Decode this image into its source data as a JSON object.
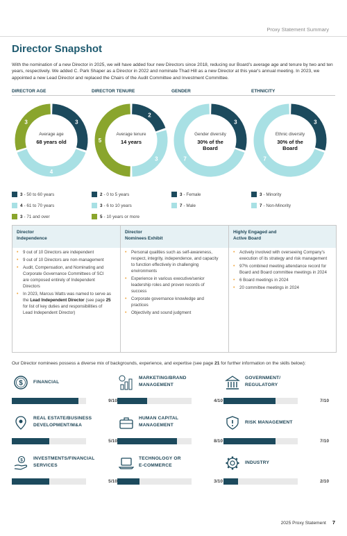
{
  "header": {
    "running_title": "Proxy Statement Summary"
  },
  "title": "Director Snapshot",
  "intro": "With the nomination of a new Director in 2025, we will have added four new Directors since 2018, reducing our Board's average age and tenure by two and ten years, respectively. We added C. Park Shaper as a Director in 2022 and nominate Thad Hill as a new Director at this year's annual meeting. In 2023, we appointed a new Lead Director and replaced the Chairs of the Audit Committee and Investment Committee.",
  "charts": [
    {
      "heading": "DIRECTOR AGE",
      "center_label": "Average age",
      "center_value": "68 years old",
      "segments": [
        {
          "value": 3,
          "color": "#1c4a5d"
        },
        {
          "value": 4,
          "color": "#a8e0e4"
        },
        {
          "value": 3,
          "color": "#8aa52d"
        }
      ],
      "legend": [
        {
          "num": "3",
          "text": "- 50 to 60 years",
          "color": "#1c4a5d"
        },
        {
          "num": "4",
          "text": "- 61 to 70 years",
          "color": "#a8e0e4"
        },
        {
          "num": "3",
          "text": "- 71 and over",
          "color": "#8aa52d"
        }
      ]
    },
    {
      "heading": "DIRECTOR TENURE",
      "center_label": "Average tenure",
      "center_value": "14 years",
      "segments": [
        {
          "value": 2,
          "color": "#1c4a5d"
        },
        {
          "value": 3,
          "color": "#a8e0e4"
        },
        {
          "value": 5,
          "color": "#8aa52d"
        }
      ],
      "legend": [
        {
          "num": "2",
          "text": "- 0 to 5 years",
          "color": "#1c4a5d"
        },
        {
          "num": "3",
          "text": "- 6 to 10 years",
          "color": "#a8e0e4"
        },
        {
          "num": "5",
          "text": "- 10 years or more",
          "color": "#8aa52d"
        }
      ]
    },
    {
      "heading": "GENDER",
      "center_label": "Gender diversity",
      "center_value": "30% of the Board",
      "segments": [
        {
          "value": 3,
          "color": "#1c4a5d"
        },
        {
          "value": 7,
          "color": "#a8e0e4"
        }
      ],
      "legend": [
        {
          "num": "3",
          "text": "- Female",
          "color": "#1c4a5d"
        },
        {
          "num": "7",
          "text": "- Male",
          "color": "#a8e0e4"
        }
      ]
    },
    {
      "heading": "ETHNICITY",
      "center_label": "Ethnic diversity",
      "center_value": "30% of the Board",
      "segments": [
        {
          "value": 3,
          "color": "#1c4a5d"
        },
        {
          "value": 7,
          "color": "#a8e0e4"
        }
      ],
      "legend": [
        {
          "num": "3",
          "text": "- Minority",
          "color": "#1c4a5d"
        },
        {
          "num": "7",
          "text": "- Non-Minority",
          "color": "#a8e0e4"
        }
      ]
    }
  ],
  "columns": [
    {
      "heading": "Director\nIndependence",
      "items": [
        {
          "text": "9 out of 10 Directors are independent"
        },
        {
          "text": "9 out of 10 Directors are non-management"
        },
        {
          "text": "Audit, Compensation, and Nominating and Corporate Governance Committees of SCI are composed entirely of Independent Directors"
        },
        {
          "pre": "In 2023, Marcus Watts was named to serve as the ",
          "bold": "Lead Independent Director",
          "mid": " (see page ",
          "bold2": "25",
          "post": " for list of key duties and responsibilities of Lead Independent Director)"
        }
      ]
    },
    {
      "heading": "Director\nNominees Exhibit",
      "items": [
        {
          "text": "Personal qualities such as self-awareness, respect, integrity, independence, and capacity to function effectively in challenging environments"
        },
        {
          "text": "Experience in various executive/senior leadership roles and proven records of success"
        },
        {
          "text": "Corporate governance knowledge and practices"
        },
        {
          "text": "Objectivity and sound judgment"
        }
      ]
    },
    {
      "heading": "Highly Engaged and\nActive Board",
      "items": [
        {
          "text": "Actively involved with overseeing Company's execution of its strategy and risk management"
        },
        {
          "text": "97% combined meeting attendance record for Board and Board committee meetings in 2024"
        },
        {
          "text": "6 Board meetings in 2024"
        },
        {
          "text": "20 committee meetings in 2024"
        }
      ]
    }
  ],
  "skills_intro": {
    "pre": "Our Director nominees possess a diverse mix of backgrounds, experience, and expertise (see page ",
    "page": "21",
    "post": " for further information on the skills below):"
  },
  "skills": [
    {
      "label": "FINANCIAL",
      "icon": "dollar-coin-icon",
      "score": 9,
      "score_text": "9/10"
    },
    {
      "label": "MARKETING/BRAND\nMANAGEMENT",
      "icon": "bar-chart-icon",
      "score": 4,
      "score_text": "4/10"
    },
    {
      "label": "GOVERNMENT/\nREGULATORY",
      "icon": "government-building-icon",
      "score": 7,
      "score_text": "7/10"
    },
    {
      "label": "REAL ESTATE/BUSINESS\nDEVELOPMENT/M&A",
      "icon": "map-pin-icon",
      "score": 5,
      "score_text": "5/10"
    },
    {
      "label": "HUMAN CAPITAL\nMANAGEMENT",
      "icon": "briefcase-icon",
      "score": 8,
      "score_text": "8/10"
    },
    {
      "label": "RISK MANAGEMENT",
      "icon": "warning-shield-icon",
      "score": 7,
      "score_text": "7/10"
    },
    {
      "label": "INVESTMENTS/FINANCIAL\nSERVICES",
      "icon": "hand-coin-icon",
      "score": 5,
      "score_text": "5/10"
    },
    {
      "label": "TECHNOLOGY OR\nE-COMMERCE",
      "icon": "laptop-icon",
      "score": 3,
      "score_text": "3/10"
    },
    {
      "label": "INDUSTRY",
      "icon": "gear-icon",
      "score": 2,
      "score_text": "2/10"
    }
  ],
  "footer": {
    "text": "2025 Proxy Statement",
    "page": "7"
  }
}
